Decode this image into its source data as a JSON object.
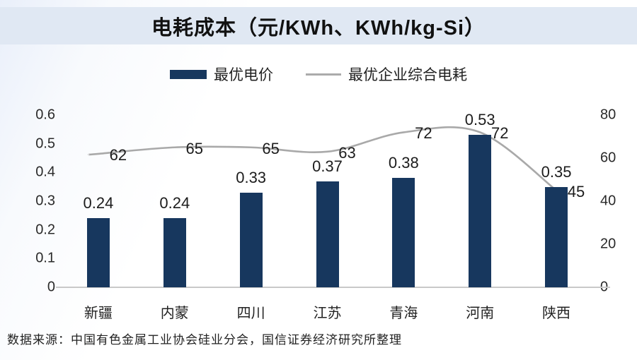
{
  "window": {
    "title": "电耗成本（元/KWh、KWh/kg-Si）"
  },
  "legend": {
    "items": [
      {
        "label": "最优电价",
        "swatch": "bar-swatch",
        "color": "#17375E"
      },
      {
        "label": "最优企业综合电耗",
        "swatch": "line-swatch",
        "color": "#ABABAB"
      }
    ]
  },
  "source_note": "数据来源：中国有色金属工业协会硅业分会，国信证券经济研究所整理",
  "chart_data": {
    "type": "combo",
    "title": "电耗成本（元/KWh、KWh/kg-Si）",
    "categories": [
      "新疆",
      "内蒙",
      "四川",
      "江苏",
      "青海",
      "河南",
      "陕西"
    ],
    "series": [
      {
        "name": "最优电价",
        "type": "bar",
        "axis": "left",
        "color": "#17375E",
        "values": [
          0.24,
          0.24,
          0.33,
          0.37,
          0.38,
          0.53,
          0.35
        ],
        "labels": [
          "0.24",
          "0.24",
          "0.33",
          "0.37",
          "0.38",
          "0.53",
          "0.35"
        ]
      },
      {
        "name": "最优企业综合电耗",
        "type": "line",
        "axis": "right",
        "color": "#A9A9A9",
        "values": [
          62,
          65,
          65,
          63,
          72,
          72,
          45
        ],
        "labels": [
          "62",
          "65",
          "65",
          "63",
          "72",
          "72",
          "45"
        ]
      }
    ],
    "left_axis": {
      "min": 0,
      "max": 0.6,
      "ticks": [
        "0",
        "0.1",
        "0.2",
        "0.3",
        "0.4",
        "0.5",
        "0.6"
      ]
    },
    "right_axis": {
      "min": 0,
      "max": 80,
      "ticks": [
        "0",
        "20",
        "40",
        "60",
        "80"
      ]
    },
    "grid": false,
    "legend_position": "top"
  }
}
